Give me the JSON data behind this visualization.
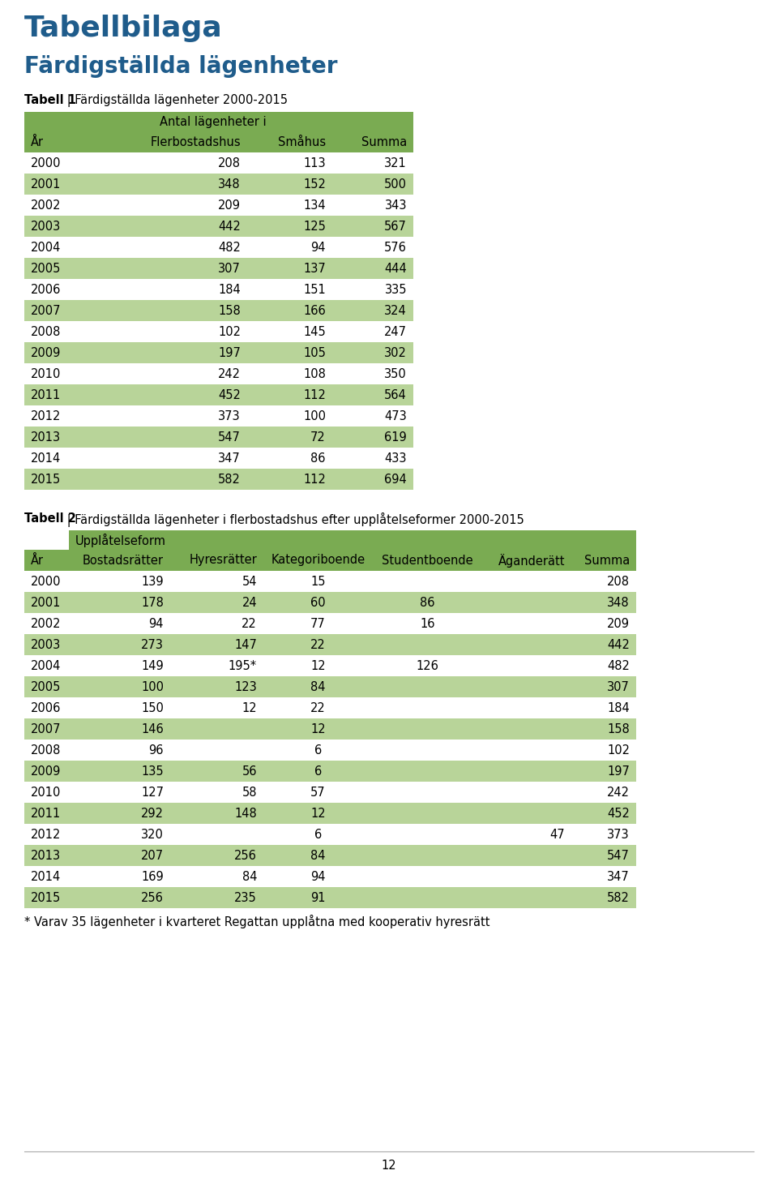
{
  "page_title": "Tabellbilaga",
  "section_title": "Färdigställda lägenheter",
  "table1_header_merged": "Antal lägenheter i",
  "table1_headers": [
    "År",
    "Flerbostadshus",
    "Småhus",
    "Summa"
  ],
  "table1_data": [
    [
      "2000",
      "208",
      "113",
      "321"
    ],
    [
      "2001",
      "348",
      "152",
      "500"
    ],
    [
      "2002",
      "209",
      "134",
      "343"
    ],
    [
      "2003",
      "442",
      "125",
      "567"
    ],
    [
      "2004",
      "482",
      "94",
      "576"
    ],
    [
      "2005",
      "307",
      "137",
      "444"
    ],
    [
      "2006",
      "184",
      "151",
      "335"
    ],
    [
      "2007",
      "158",
      "166",
      "324"
    ],
    [
      "2008",
      "102",
      "145",
      "247"
    ],
    [
      "2009",
      "197",
      "105",
      "302"
    ],
    [
      "2010",
      "242",
      "108",
      "350"
    ],
    [
      "2011",
      "452",
      "112",
      "564"
    ],
    [
      "2012",
      "373",
      "100",
      "473"
    ],
    [
      "2013",
      "547",
      "72",
      "619"
    ],
    [
      "2014",
      "347",
      "86",
      "433"
    ],
    [
      "2015",
      "582",
      "112",
      "694"
    ]
  ],
  "table2_merged_header": "Upplåtelseform",
  "table2_headers": [
    "År",
    "Bostadsrätter",
    "Hyresrätter",
    "Kategoriboende",
    "Studentboende",
    "Äganderätt",
    "Summa"
  ],
  "table2_data": [
    [
      "2000",
      "139",
      "54",
      "15",
      "",
      "",
      "208"
    ],
    [
      "2001",
      "178",
      "24",
      "60",
      "86",
      "",
      "348"
    ],
    [
      "2002",
      "94",
      "22",
      "77",
      "16",
      "",
      "209"
    ],
    [
      "2003",
      "273",
      "147",
      "22",
      "",
      "",
      "442"
    ],
    [
      "2004",
      "149",
      "195*",
      "12",
      "126",
      "",
      "482"
    ],
    [
      "2005",
      "100",
      "123",
      "84",
      "",
      "",
      "307"
    ],
    [
      "2006",
      "150",
      "12",
      "22",
      "",
      "",
      "184"
    ],
    [
      "2007",
      "146",
      "",
      "12",
      "",
      "",
      "158"
    ],
    [
      "2008",
      "96",
      "",
      "6",
      "",
      "",
      "102"
    ],
    [
      "2009",
      "135",
      "56",
      "6",
      "",
      "",
      "197"
    ],
    [
      "2010",
      "127",
      "58",
      "57",
      "",
      "",
      "242"
    ],
    [
      "2011",
      "292",
      "148",
      "12",
      "",
      "",
      "452"
    ],
    [
      "2012",
      "320",
      "",
      "6",
      "",
      "47",
      "373"
    ],
    [
      "2013",
      "207",
      "256",
      "84",
      "",
      "",
      "547"
    ],
    [
      "2014",
      "169",
      "84",
      "94",
      "",
      "",
      "347"
    ],
    [
      "2015",
      "256",
      "235",
      "91",
      "",
      "",
      "582"
    ]
  ],
  "footnote": "* Varav 35 lägenheter i kvarteret Regattan upplåtna med kooperativ hyresrätt",
  "page_number": "12",
  "color_header": "#7aab52",
  "color_row_odd": "#b8d499",
  "color_row_even": "#ffffff",
  "color_title": "#1f5c8b",
  "color_text": "#000000",
  "bg_color": "#ffffff"
}
